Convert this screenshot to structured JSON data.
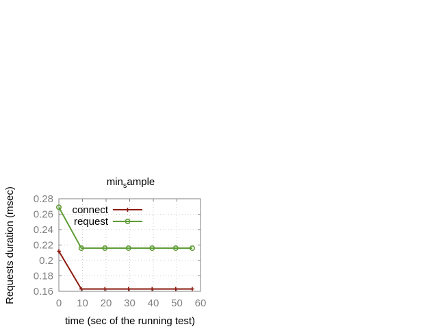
{
  "chart_data": {
    "type": "line",
    "title_main": "min",
    "title_subscript": "s",
    "title_tail": "ample",
    "xlabel": "time (sec of the running test)",
    "ylabel": "Requests duration (msec)",
    "xlim": [
      0,
      60
    ],
    "ylim": [
      0.16,
      0.28
    ],
    "xticks": [
      0,
      10,
      20,
      30,
      40,
      50,
      60
    ],
    "yticks": [
      0.16,
      0.18,
      0.2,
      0.22,
      0.24,
      0.26,
      0.28
    ],
    "xtick_labels": [
      "0",
      "10",
      "20",
      "30",
      "40",
      "50",
      "60"
    ],
    "ytick_labels": [
      "0.16",
      "0.18",
      "0.2",
      "0.22",
      "0.24",
      "0.26",
      "0.28"
    ],
    "grid": true,
    "legend_position": "top-right",
    "series": [
      {
        "name": "connect",
        "color": "#8b1a0e",
        "marker": "plus",
        "x": [
          0,
          9.5,
          19.5,
          29.5,
          39.5,
          49.5,
          56.5
        ],
        "y": [
          0.212,
          0.163,
          0.163,
          0.163,
          0.163,
          0.163,
          0.163
        ]
      },
      {
        "name": "request",
        "color": "#5e9c36",
        "marker": "circle",
        "x": [
          0,
          9.5,
          19.5,
          29.5,
          39.5,
          49.5,
          56.5
        ],
        "y": [
          0.269,
          0.216,
          0.216,
          0.216,
          0.216,
          0.216,
          0.216
        ]
      }
    ]
  }
}
